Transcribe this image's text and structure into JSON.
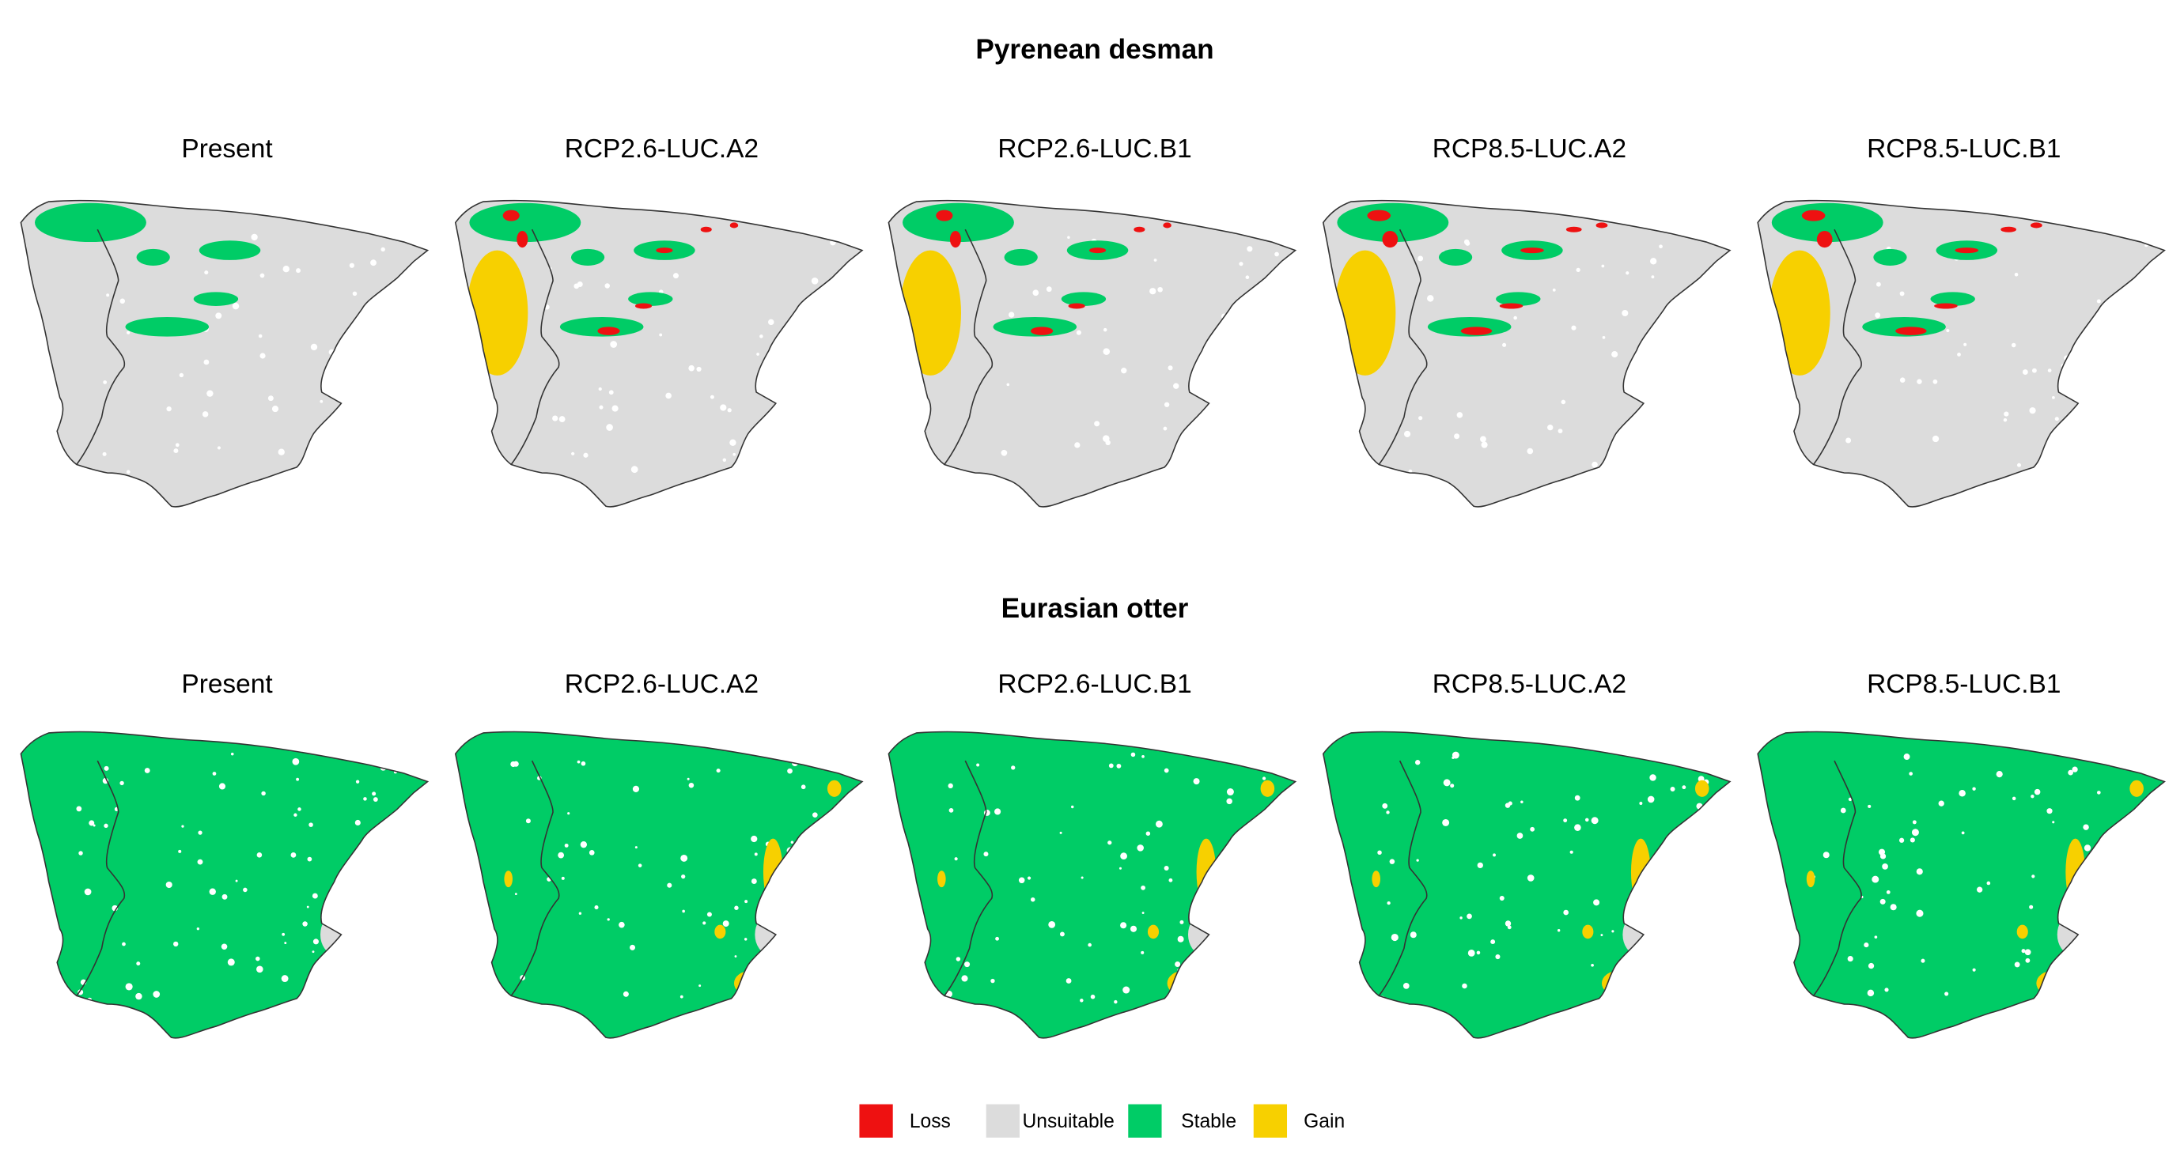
{
  "rows": [
    {
      "title": "Pyrenean desman",
      "panels": [
        "Present",
        "RCP2.6-LUC.A2",
        "RCP2.6-LUC.B1",
        "RCP8.5-LUC.A2",
        "RCP8.5-LUC.B1"
      ]
    },
    {
      "title": "Eurasian otter",
      "panels": [
        "Present",
        "RCP2.6-LUC.A2",
        "RCP2.6-LUC.B1",
        "RCP8.5-LUC.A2",
        "RCP8.5-LUC.B1"
      ]
    }
  ],
  "legend": [
    {
      "label": "Loss",
      "color": "#ee1111"
    },
    {
      "label": "Unsuitable",
      "color": "#dcdcdc"
    },
    {
      "label": "Stable",
      "color": "#00cc66"
    },
    {
      "label": "Gain",
      "color": "#f7d000"
    }
  ]
}
